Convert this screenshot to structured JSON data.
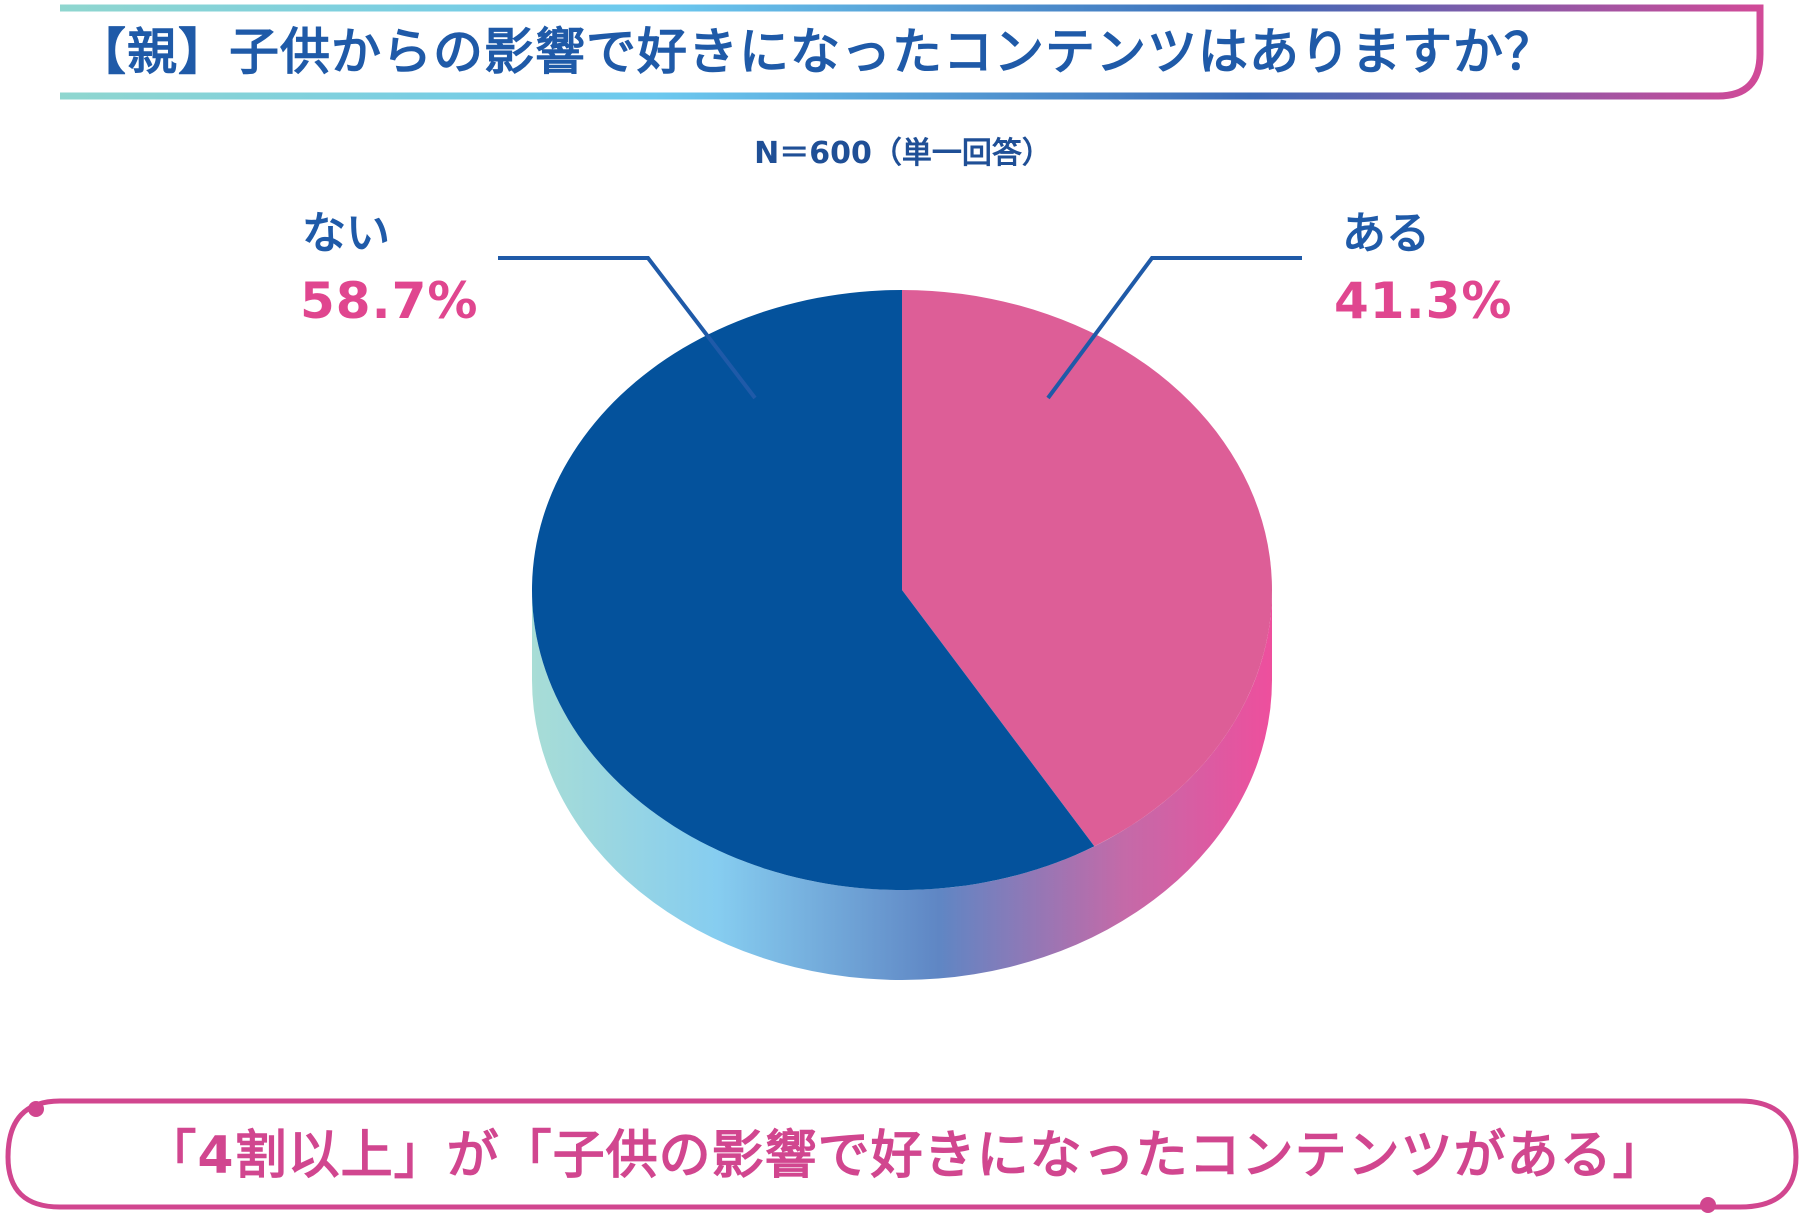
{
  "header": {
    "title": "【親】子供からの影響で好きになったコンテンツはありますか？",
    "sample_note": "N＝600（単一回答）"
  },
  "colors": {
    "navy": "#04529c",
    "pink": "#dd5e97",
    "label_blue": "#1f5aa8",
    "value_pink": "#e0468f",
    "callout_pink": "#d1468f"
  },
  "chart_data": {
    "type": "pie",
    "title": "【親】子供からの影響で好きになったコンテンツはありますか？",
    "subtitle": "N＝600（単一回答）",
    "slices": [
      {
        "label": "ある",
        "value": 41.3,
        "display": "41.3%",
        "color": "#dd5e97"
      },
      {
        "label": "ない",
        "value": 58.7,
        "display": "58.7%",
        "color": "#04529c"
      }
    ]
  },
  "callout": {
    "text": "「4割以上」が「子供の影響で好きになったコンテンツがある」"
  }
}
